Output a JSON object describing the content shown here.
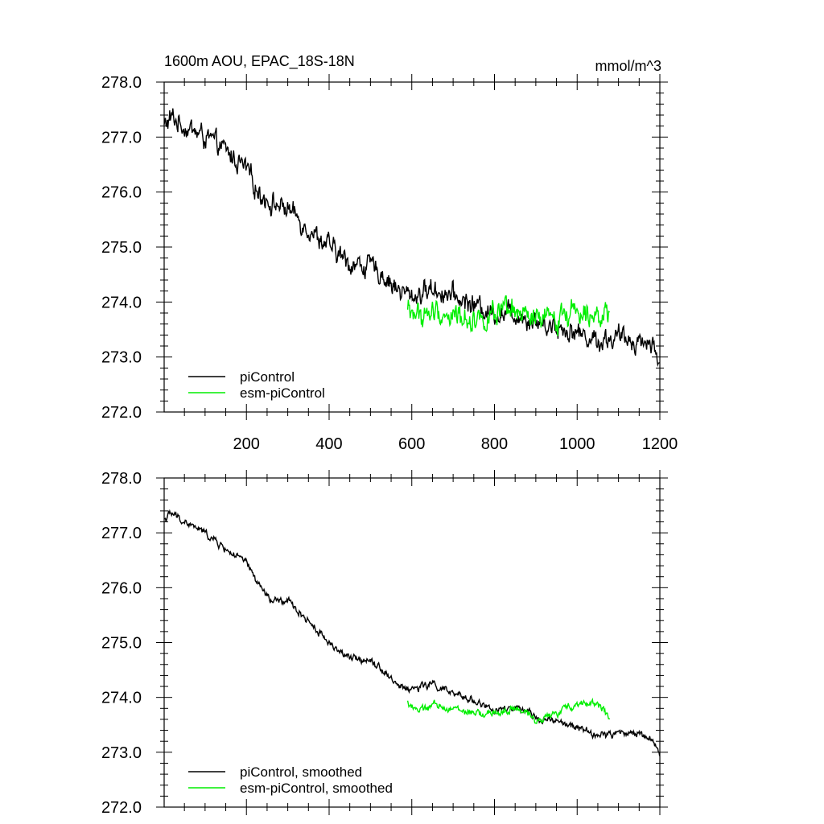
{
  "chart_data": [
    {
      "type": "line",
      "title": "1600m AOU, EPAC_18S-18N",
      "units": "mmol/m^3",
      "xlim": [
        1,
        1200
      ],
      "ylim": [
        272.0,
        278.0
      ],
      "x_ticks": [
        200,
        400,
        600,
        800,
        1000,
        1200
      ],
      "x_tick_labels": [
        "200",
        "400",
        "600",
        "800",
        "1000",
        "1200"
      ],
      "y_ticks": [
        272.0,
        273.0,
        274.0,
        275.0,
        276.0,
        277.0,
        278.0
      ],
      "y_tick_labels": [
        "272.0",
        "273.0",
        "274.0",
        "275.0",
        "276.0",
        "277.0",
        "278.0"
      ],
      "grid": false,
      "legend_position": "bottom-left",
      "series": [
        {
          "name": "piControl",
          "color": "#000000",
          "noise": 0.14,
          "x": [
            1,
            20,
            50,
            100,
            150,
            200,
            230,
            260,
            300,
            350,
            400,
            450,
            500,
            530,
            570,
            600,
            650,
            700,
            750,
            800,
            850,
            900,
            950,
            1000,
            1050,
            1100,
            1150,
            1180,
            1200
          ],
          "y": [
            277.2,
            277.35,
            277.2,
            277.0,
            276.75,
            276.4,
            276.0,
            275.8,
            275.7,
            275.35,
            275.0,
            274.7,
            274.65,
            274.5,
            274.2,
            274.1,
            274.25,
            274.1,
            273.95,
            273.8,
            273.8,
            273.65,
            273.55,
            273.45,
            273.3,
            273.35,
            273.3,
            273.25,
            272.95
          ]
        },
        {
          "name": "esm-piControl",
          "color": "#00ee00",
          "noise": 0.16,
          "x": [
            590,
            620,
            650,
            700,
            750,
            800,
            850,
            900,
            950,
            1000,
            1050,
            1080
          ],
          "y": [
            273.85,
            273.75,
            273.8,
            273.75,
            273.7,
            273.75,
            273.8,
            273.65,
            273.7,
            273.9,
            273.85,
            273.6
          ]
        }
      ]
    },
    {
      "type": "line",
      "xlim": [
        1,
        1200
      ],
      "ylim": [
        272.0,
        278.0
      ],
      "x_ticks": [
        200,
        400,
        600,
        800,
        1000,
        1200
      ],
      "y_ticks": [
        272.0,
        273.0,
        274.0,
        275.0,
        276.0,
        277.0,
        278.0
      ],
      "y_tick_labels": [
        "272.0",
        "273.0",
        "274.0",
        "275.0",
        "276.0",
        "277.0",
        "278.0"
      ],
      "grid": false,
      "legend_position": "bottom-left",
      "series": [
        {
          "name": "piControl, smoothed",
          "color": "#000000",
          "noise": 0.05,
          "x": [
            1,
            20,
            50,
            100,
            150,
            200,
            230,
            260,
            300,
            350,
            400,
            450,
            500,
            530,
            570,
            600,
            650,
            700,
            750,
            800,
            850,
            900,
            950,
            1000,
            1050,
            1100,
            1150,
            1180,
            1200
          ],
          "y": [
            277.25,
            277.35,
            277.2,
            277.0,
            276.7,
            276.45,
            276.05,
            275.75,
            275.75,
            275.4,
            275.0,
            274.7,
            274.7,
            274.5,
            274.2,
            274.15,
            274.25,
            274.05,
            273.95,
            273.75,
            273.8,
            273.65,
            273.55,
            273.45,
            273.3,
            273.35,
            273.35,
            273.25,
            272.95
          ]
        },
        {
          "name": "esm-piControl, smoothed",
          "color": "#00ee00",
          "noise": 0.05,
          "x": [
            590,
            620,
            650,
            700,
            750,
            800,
            850,
            900,
            950,
            1000,
            1050,
            1080
          ],
          "y": [
            273.9,
            273.75,
            273.85,
            273.8,
            273.7,
            273.7,
            273.8,
            273.6,
            273.7,
            273.9,
            273.9,
            273.6
          ]
        }
      ]
    }
  ]
}
